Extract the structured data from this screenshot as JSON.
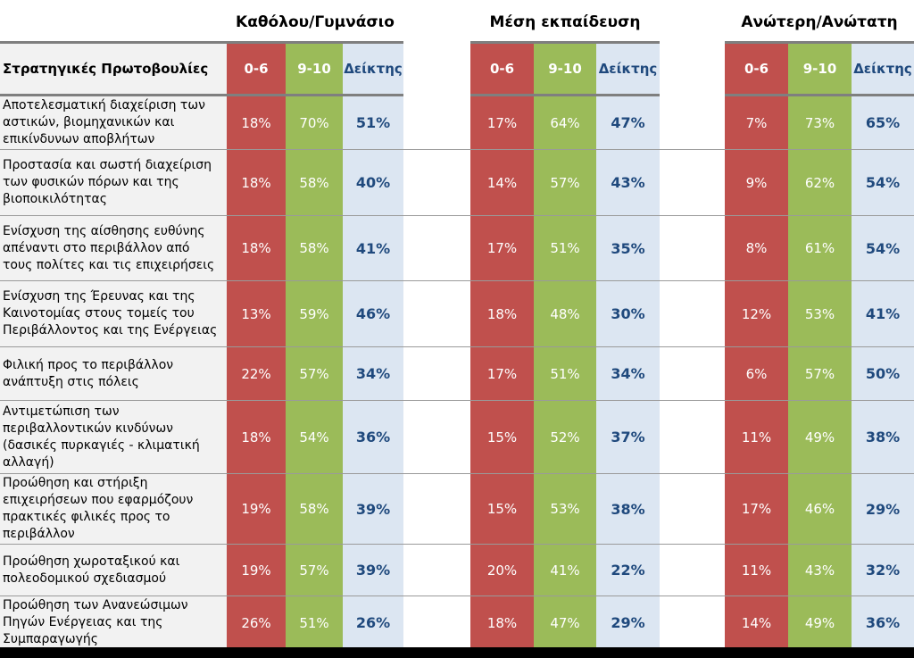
{
  "group_titles": [
    "Καθόλου/Γυμνάσιο",
    "Μέση εκπαίδευση",
    "Ανώτερη/Ανώτατη"
  ],
  "header": {
    "row_label": "Στρατηγικές Πρωτοβουλίες",
    "col_low": "0-6",
    "col_high": "9-10",
    "col_index": "Δείκτης"
  },
  "rows": [
    {
      "label": "Αποτελεσματική διαχείριση των αστικών, βιομηχανικών και επικίνδυνων αποβλήτων",
      "values": [
        [
          "18%",
          "70%",
          "51%"
        ],
        [
          "17%",
          "64%",
          "47%"
        ],
        [
          "7%",
          "73%",
          "65%"
        ]
      ]
    },
    {
      "label": "Προστασία και σωστή διαχείριση των φυσικών πόρων και της βιοποικιλότητας",
      "values": [
        [
          "18%",
          "58%",
          "40%"
        ],
        [
          "14%",
          "57%",
          "43%"
        ],
        [
          "9%",
          "62%",
          "54%"
        ]
      ]
    },
    {
      "label": "Ενίσχυση της αίσθησης ευθύνης απέναντι στο περιβάλλον από τους πολίτες και τις επιχειρήσεις",
      "values": [
        [
          "18%",
          "58%",
          "41%"
        ],
        [
          "17%",
          "51%",
          "35%"
        ],
        [
          "8%",
          "61%",
          "54%"
        ]
      ]
    },
    {
      "label": "Ενίσχυση της Έρευνας και της Καινοτομίας στους τομείς του Περιβάλλοντος και της Ενέργειας",
      "values": [
        [
          "13%",
          "59%",
          "46%"
        ],
        [
          "18%",
          "48%",
          "30%"
        ],
        [
          "12%",
          "53%",
          "41%"
        ]
      ]
    },
    {
      "label": "Φιλική προς το περιβάλλον ανάπτυξη στις πόλεις",
      "values": [
        [
          "22%",
          "57%",
          "34%"
        ],
        [
          "17%",
          "51%",
          "34%"
        ],
        [
          "6%",
          "57%",
          "50%"
        ]
      ]
    },
    {
      "label": "Αντιμετώπιση των περιβαλλοντικών κινδύνων (δασικές πυρκαγιές - κλιματική αλλαγή)",
      "values": [
        [
          "18%",
          "54%",
          "36%"
        ],
        [
          "15%",
          "52%",
          "37%"
        ],
        [
          "11%",
          "49%",
          "38%"
        ]
      ]
    },
    {
      "label": "Προώθηση και στήριξη επιχειρήσεων που εφαρμόζουν πρακτικές φιλικές προς το περιβάλλον",
      "values": [
        [
          "19%",
          "58%",
          "39%"
        ],
        [
          "15%",
          "53%",
          "38%"
        ],
        [
          "17%",
          "46%",
          "29%"
        ]
      ]
    },
    {
      "label": "Προώθηση χωροταξικού και πολεοδομικού σχεδιασμού",
      "values": [
        [
          "19%",
          "57%",
          "39%"
        ],
        [
          "20%",
          "41%",
          "22%"
        ],
        [
          "11%",
          "43%",
          "32%"
        ]
      ]
    },
    {
      "label": "Προώθηση των Ανανεώσιμων Πηγών Ενέργειας και της Συμπαραγωγής",
      "values": [
        [
          "26%",
          "51%",
          "26%"
        ],
        [
          "18%",
          "47%",
          "29%"
        ],
        [
          "14%",
          "49%",
          "36%"
        ]
      ]
    }
  ],
  "colors": {
    "low": "#c0504d",
    "high": "#9bbb59",
    "index_bg": "#dce6f2",
    "index_text": "#1f497d"
  }
}
